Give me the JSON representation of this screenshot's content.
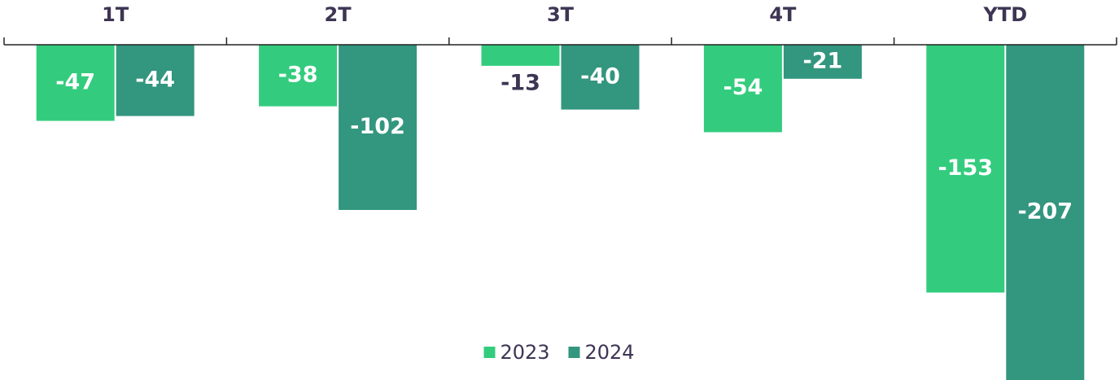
{
  "chart_data": {
    "type": "bar",
    "categories": [
      "1T",
      "2T",
      "3T",
      "4T",
      "YTD"
    ],
    "series": [
      {
        "name": "2023",
        "color": "#33cc7e",
        "values": [
          -47,
          -38,
          -13,
          -54,
          -153
        ]
      },
      {
        "name": "2024",
        "color": "#33967f",
        "values": [
          -44,
          -102,
          -40,
          -21,
          -207
        ]
      }
    ],
    "ylim": [
      -207,
      0
    ],
    "legend": "bottom"
  }
}
